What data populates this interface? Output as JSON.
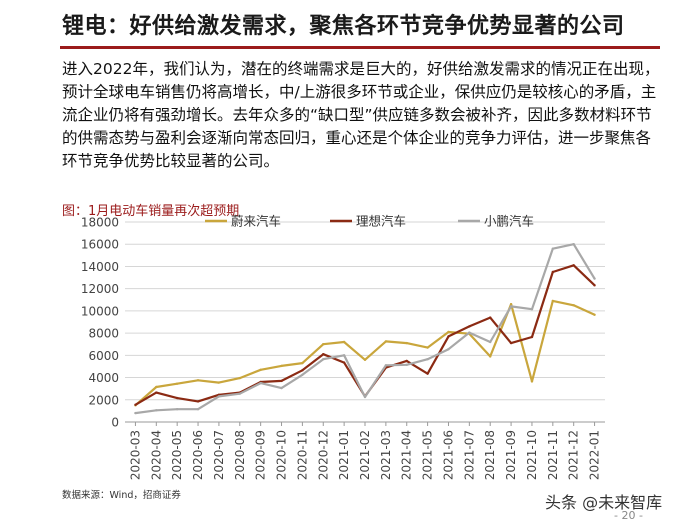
{
  "page": {
    "title": "锂电：好供给激发需求，聚焦各环节竞争优势显著的公司",
    "body_text": "进入2022年，我们认为，潜在的终端需求是巨大的，好供给激发需求的情况正在出现，预计全球电车销售仍将高增长，中/上游很多环节或企业，保供应仍是较核心的矛盾，主流企业仍将有强劲增长。去年众多的“缺口型”供应链多数会被补齐，因此多数材料环节的供需态势与盈利会逐渐向常态回归，重心还是个体企业的竞争力评估，进一步聚焦各环节竞争优势比较显著的公司。",
    "figure_caption": "图：1月电动车销量再次超预期",
    "source": "数据来源：Wind，招商证券",
    "watermark": "头条 @未来智库",
    "page_number": "- 20 -"
  },
  "chart_data": {
    "type": "line",
    "title": "",
    "xlabel": "",
    "ylabel": "",
    "ylim": [
      0,
      18000
    ],
    "yticks": [
      0,
      2000,
      4000,
      6000,
      8000,
      10000,
      12000,
      14000,
      16000,
      18000
    ],
    "grid": "horizontal",
    "legend_position": "top",
    "categories": [
      "2020-03",
      "2020-04",
      "2020-05",
      "2020-06",
      "2020-07",
      "2020-08",
      "2020-09",
      "2020-10",
      "2020-11",
      "2020-12",
      "2021-01",
      "2021-02",
      "2021-03",
      "2021-04",
      "2021-05",
      "2021-06",
      "2021-07",
      "2021-08",
      "2021-09",
      "2021-10",
      "2021-11",
      "2021-12",
      "2022-01"
    ],
    "series": [
      {
        "name": "蔚来汽车",
        "color": "#c9a63c",
        "values": [
          1500,
          3150,
          3450,
          3750,
          3550,
          3950,
          4700,
          5050,
          5300,
          7000,
          7200,
          5600,
          7250,
          7100,
          6700,
          8100,
          7950,
          5900,
          10600,
          3650,
          10900,
          10500,
          9650
        ]
      },
      {
        "name": "理想汽车",
        "color": "#8b2a13",
        "values": [
          1550,
          2650,
          2150,
          1850,
          2450,
          2650,
          3600,
          3700,
          4650,
          6100,
          5350,
          2300,
          4900,
          5500,
          4350,
          7700,
          8600,
          9400,
          7100,
          7650,
          13500,
          14100,
          12300
        ]
      },
      {
        "name": "小鹏汽车",
        "color": "#a8a8a8",
        "values": [
          800,
          1050,
          1150,
          1150,
          2300,
          2550,
          3500,
          3050,
          4250,
          5650,
          6000,
          2250,
          5100,
          5150,
          5650,
          6550,
          8050,
          7200,
          10400,
          10150,
          15600,
          16000,
          12900
        ]
      }
    ]
  }
}
